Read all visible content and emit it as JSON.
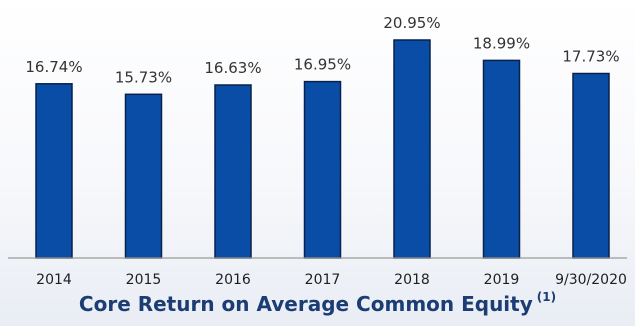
{
  "chart_data": {
    "type": "bar",
    "title": "Core Return on Average Common Equity",
    "title_footnote": "(1)",
    "categories": [
      "2014",
      "2015",
      "2016",
      "2017",
      "2018",
      "2019",
      "9/30/2020"
    ],
    "values": [
      16.74,
      15.73,
      16.63,
      16.95,
      20.95,
      18.99,
      17.73
    ],
    "data_labels": [
      "16.74%",
      "15.73%",
      "16.63%",
      "16.95%",
      "20.95%",
      "18.99%",
      "17.73%"
    ],
    "value_unit": "%",
    "xlabel": "",
    "ylabel": "",
    "ylim": [
      0,
      22
    ],
    "grid": false,
    "legend": "none",
    "colors": {
      "bar": "#0a4da6",
      "bar_edge": "#07224b",
      "title": "#1b3d73"
    }
  }
}
